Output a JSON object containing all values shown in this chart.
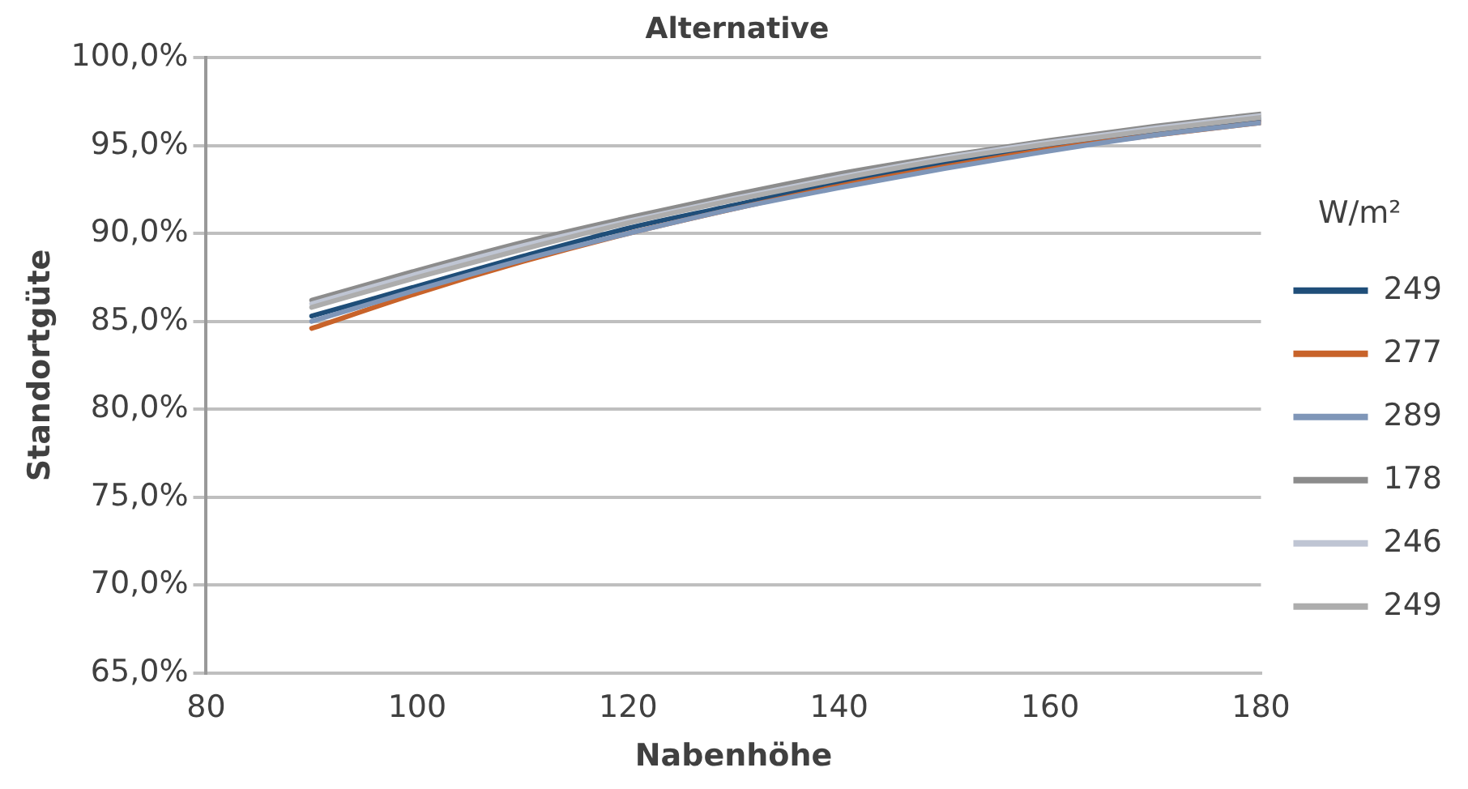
{
  "chart_data": {
    "type": "line",
    "title": "Alternative",
    "xlabel": "Nabenhöhe",
    "ylabel": "Standortgüte",
    "legend_title": "W/m²",
    "legend": "right",
    "grid": "y",
    "marker": "none",
    "line_style": "solid",
    "x": [
      90,
      100,
      110,
      120,
      130,
      140,
      150,
      160,
      170,
      180
    ],
    "xlim": [
      80,
      180
    ],
    "xticks": [
      80,
      100,
      120,
      140,
      160,
      180
    ],
    "ylim": [
      65,
      100
    ],
    "yticks": [
      {
        "value": 65,
        "label": "65,0%"
      },
      {
        "value": 70,
        "label": "70,0%"
      },
      {
        "value": 75,
        "label": "75,0%"
      },
      {
        "value": 80,
        "label": "80,0%"
      },
      {
        "value": 85,
        "label": "85,0%"
      },
      {
        "value": 90,
        "label": "90,0%"
      },
      {
        "value": 95,
        "label": "95,0%"
      },
      {
        "value": 100,
        "label": "100,0%"
      }
    ],
    "series": [
      {
        "name": "249",
        "color": "#1f4e79",
        "values": [
          85.3,
          87.0,
          88.7,
          90.3,
          91.6,
          92.9,
          94.0,
          94.9,
          95.8,
          96.5
        ]
      },
      {
        "name": "277",
        "color": "#c8632a",
        "values": [
          84.6,
          86.6,
          88.4,
          90.0,
          91.4,
          92.7,
          93.8,
          94.8,
          95.6,
          96.3
        ]
      },
      {
        "name": "289",
        "color": "#7f96b8",
        "values": [
          85.0,
          86.8,
          88.5,
          90.0,
          91.4,
          92.6,
          93.7,
          94.7,
          95.6,
          96.3
        ]
      },
      {
        "name": "178",
        "color": "#8c8c8c",
        "values": [
          86.2,
          87.9,
          89.5,
          90.9,
          92.2,
          93.4,
          94.4,
          95.3,
          96.1,
          96.8
        ]
      },
      {
        "name": "246",
        "color": "#bfc5d3",
        "values": [
          86.0,
          87.7,
          89.3,
          90.7,
          92.0,
          93.2,
          94.3,
          95.2,
          96.0,
          96.7
        ]
      },
      {
        "name": "249",
        "color": "#adadad",
        "values": [
          85.8,
          87.5,
          89.1,
          90.6,
          91.9,
          93.1,
          94.2,
          95.1,
          95.9,
          96.6
        ]
      }
    ]
  }
}
